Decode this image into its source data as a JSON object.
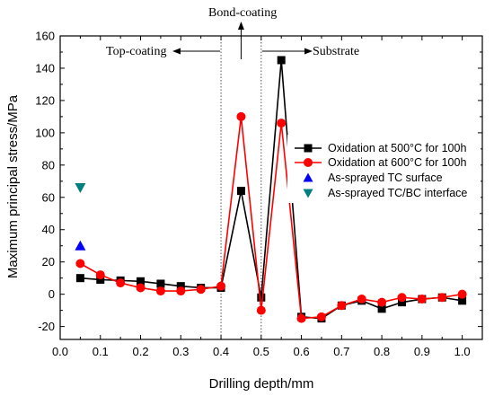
{
  "chart_data": {
    "type": "line",
    "xlabel": "Drilling depth/mm",
    "ylabel": "Maximum principal stress/MPa",
    "xlim": [
      0.0,
      1.05
    ],
    "ylim": [
      -28,
      160
    ],
    "xticks": [
      "0.0",
      "0.1",
      "0.2",
      "0.3",
      "0.4",
      "0.5",
      "0.6",
      "0.7",
      "0.8",
      "0.9",
      "1.0"
    ],
    "yticks": [
      "-20",
      "0",
      "20",
      "40",
      "60",
      "80",
      "100",
      "120",
      "140",
      "160"
    ],
    "x": [
      0.05,
      0.1,
      0.15,
      0.2,
      0.25,
      0.3,
      0.35,
      0.4,
      0.45,
      0.5,
      0.55,
      0.6,
      0.65,
      0.7,
      0.75,
      0.8,
      0.85,
      0.9,
      0.95,
      1.0
    ],
    "series": [
      {
        "name": "Oxidation at 500°C for 100h",
        "color": "#000000",
        "marker": "square",
        "values": [
          10,
          9,
          8.5,
          8,
          6.5,
          5,
          4,
          4,
          64,
          -2,
          145,
          -14,
          -15,
          -7,
          -4,
          -9,
          -5,
          -3,
          -2,
          -4
        ]
      },
      {
        "name": "Oxidation at 600°C for 100h",
        "color": "#ff0000",
        "marker": "circle",
        "values": [
          19,
          12,
          7,
          4,
          2,
          2,
          3,
          5,
          110,
          -10,
          106,
          -15,
          -14,
          -7,
          -3,
          -5,
          -2,
          -3,
          -2,
          0
        ]
      }
    ],
    "points": [
      {
        "name": "As-sprayed TC surface",
        "color": "#0000ff",
        "marker": "triangle-up",
        "x": 0.05,
        "y": 30
      },
      {
        "name": "As-sprayed TC/BC interface",
        "color": "#008080",
        "marker": "triangle-down",
        "x": 0.05,
        "y": 66
      }
    ],
    "legend_position": "right",
    "region_lines": [
      0.4,
      0.5
    ],
    "annotations": {
      "top_coating": "Top-coating",
      "bond_coating": "Bond-coating",
      "substrate": "Substrate"
    }
  }
}
